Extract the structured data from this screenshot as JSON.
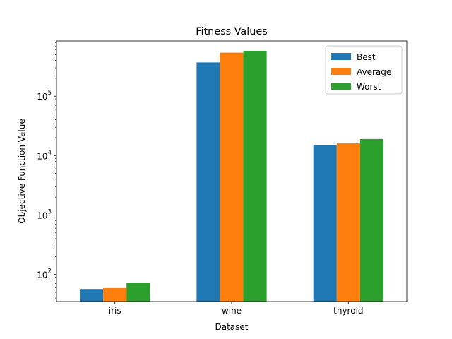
{
  "chart_data": {
    "type": "bar",
    "title": "Fitness Values",
    "xlabel": "Dataset",
    "ylabel": "Objective Function Value",
    "yscale": "log",
    "ylim": [
      35,
      850000
    ],
    "categories": [
      "iris",
      "wine",
      "thyroid"
    ],
    "series": [
      {
        "name": "Best",
        "color": "#1f77b4",
        "values": [
          57,
          370000,
          15200
        ]
      },
      {
        "name": "Average",
        "color": "#ff7f0e",
        "values": [
          59,
          540000,
          16100
        ]
      },
      {
        "name": "Worst",
        "color": "#2ca02c",
        "values": [
          73,
          580000,
          19000
        ]
      }
    ],
    "major_ticks": [
      {
        "value": 100,
        "base": "10",
        "exp": "2"
      },
      {
        "value": 1000,
        "base": "10",
        "exp": "3"
      },
      {
        "value": 10000,
        "base": "10",
        "exp": "4"
      },
      {
        "value": 100000,
        "base": "10",
        "exp": "5"
      }
    ],
    "legend_position": "top-right",
    "grid": false
  }
}
